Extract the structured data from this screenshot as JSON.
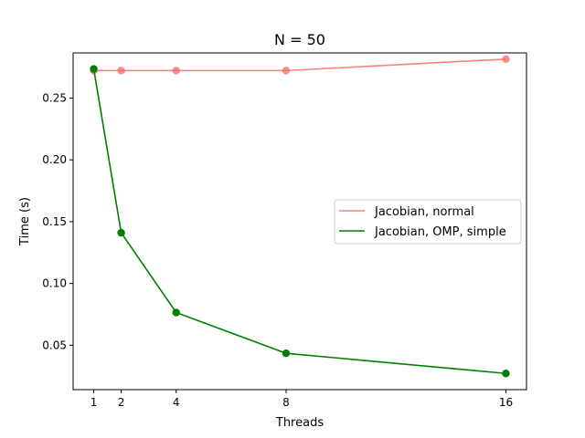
{
  "chart_data": {
    "type": "line",
    "title": "N = 50",
    "xlabel": "Threads",
    "ylabel": "Time (s)",
    "x": [
      1,
      2,
      4,
      8,
      16
    ],
    "xticks": [
      1,
      2,
      4,
      8,
      16
    ],
    "yticks": [
      0.05,
      0.1,
      0.15,
      0.2,
      0.25
    ],
    "ytick_labels": [
      "0.05",
      "0.10",
      "0.15",
      "0.20",
      "0.25"
    ],
    "xlim": [
      0.25,
      16.75
    ],
    "ylim": [
      0.0141,
      0.2865
    ],
    "grid": false,
    "legend_position": "center-right",
    "series": [
      {
        "name": "Jacobian, normal",
        "color": "#ff6666",
        "line_color": "#ff8080",
        "values": [
          0.2722,
          0.2722,
          0.2722,
          0.2722,
          0.2815
        ]
      },
      {
        "name": "Jacobian, OMP, simple",
        "color": "#008000",
        "line_color": "#008000",
        "values": [
          0.2735,
          0.141,
          0.0765,
          0.0435,
          0.0272
        ]
      }
    ]
  }
}
